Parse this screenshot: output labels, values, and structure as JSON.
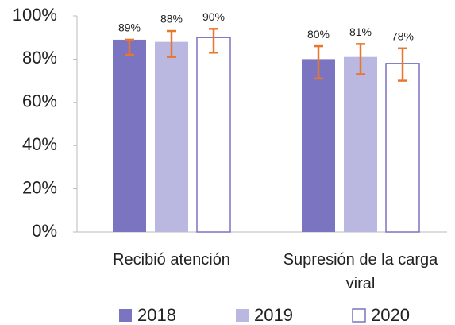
{
  "chart_data": {
    "type": "bar",
    "categories": [
      "Recibió atención",
      "Supresión de la carga viral"
    ],
    "series": [
      {
        "name": "2018",
        "color": "#7b74c1",
        "values": [
          89,
          80
        ],
        "value_labels": [
          "89%",
          "80%"
        ],
        "error_high": [
          89,
          86
        ],
        "error_low": [
          82,
          71
        ]
      },
      {
        "name": "2019",
        "color": "#bab7e1",
        "values": [
          88,
          81
        ],
        "value_labels": [
          "88%",
          "81%"
        ],
        "error_high": [
          93,
          87
        ],
        "error_low": [
          81,
          73
        ]
      },
      {
        "name": "2020",
        "color": "#ffffff",
        "values": [
          90,
          78
        ],
        "value_labels": [
          "90%",
          "78%"
        ],
        "error_high": [
          94,
          85
        ],
        "error_low": [
          83,
          70
        ]
      }
    ],
    "ylim": [
      0,
      100
    ],
    "yticks": [
      {
        "value": 0,
        "label": "0%"
      },
      {
        "value": 20,
        "label": "20%"
      },
      {
        "value": 40,
        "label": "40%"
      },
      {
        "value": 60,
        "label": "60%"
      },
      {
        "value": 80,
        "label": "80%"
      },
      {
        "value": 100,
        "label": "100%"
      }
    ],
    "error_color": "#e8772e",
    "outline_color": "#7b74c1"
  }
}
